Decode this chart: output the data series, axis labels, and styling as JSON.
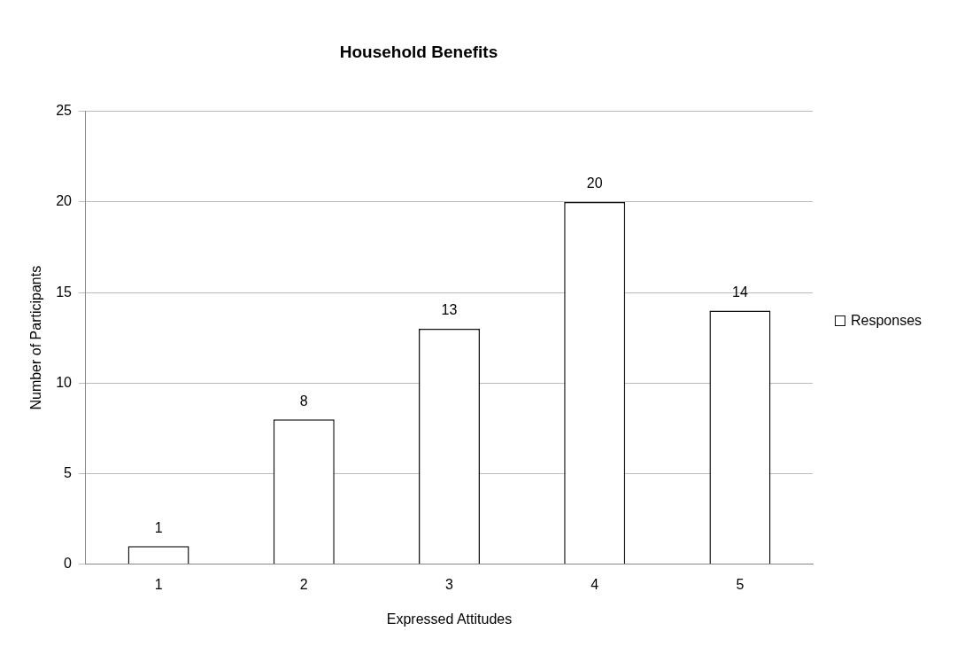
{
  "chart_data": {
    "type": "bar",
    "title": "Household Benefits",
    "xlabel": "Expressed Attitudes",
    "ylabel": "Number of Participants",
    "categories": [
      "1",
      "2",
      "3",
      "4",
      "5"
    ],
    "series": [
      {
        "name": "Responses",
        "color": "#ffffff",
        "values": [
          1,
          8,
          13,
          20,
          14
        ]
      }
    ],
    "ylim": [
      0,
      25
    ],
    "yticks": [
      0,
      5,
      10,
      15,
      20,
      25
    ],
    "grid": "y",
    "legend": "right",
    "data_labels": true
  }
}
